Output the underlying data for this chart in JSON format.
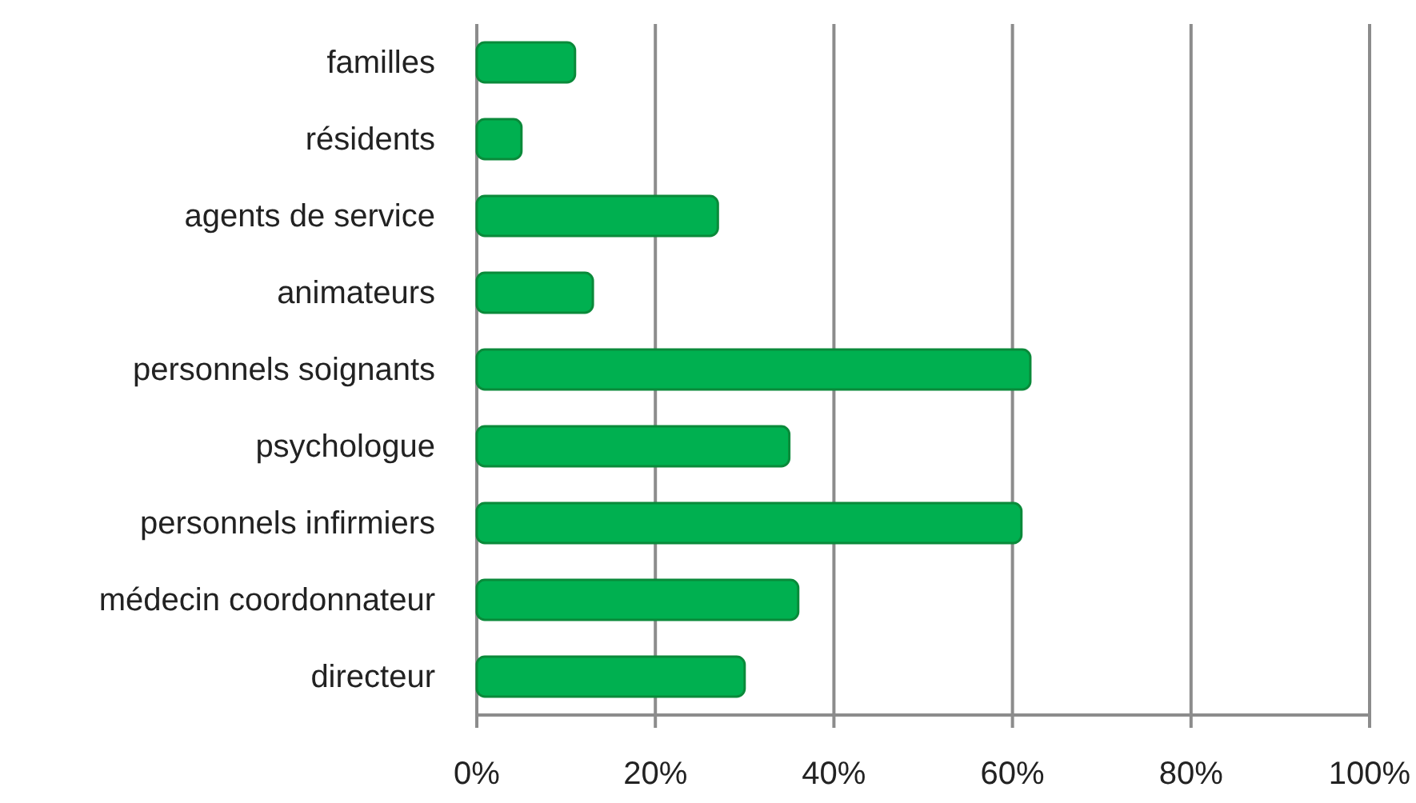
{
  "chart_data": {
    "type": "bar",
    "orientation": "horizontal",
    "categories": [
      "familles",
      "résidents",
      "agents de service",
      "animateurs",
      "personnels soignants",
      "psychologue",
      "personnels infirmiers",
      "médecin coordonnateur",
      "directeur"
    ],
    "values": [
      11,
      5,
      27,
      13,
      62,
      35,
      61,
      36,
      30
    ],
    "color": "#00b050",
    "xlim": [
      0,
      100
    ],
    "xticks": [
      {
        "value": 0,
        "label": "0%"
      },
      {
        "value": 20,
        "label": "20%"
      },
      {
        "value": 40,
        "label": "40%"
      },
      {
        "value": 60,
        "label": "60%"
      },
      {
        "value": 80,
        "label": "80%"
      },
      {
        "value": 100,
        "label": "100%"
      }
    ],
    "grid": "x"
  }
}
